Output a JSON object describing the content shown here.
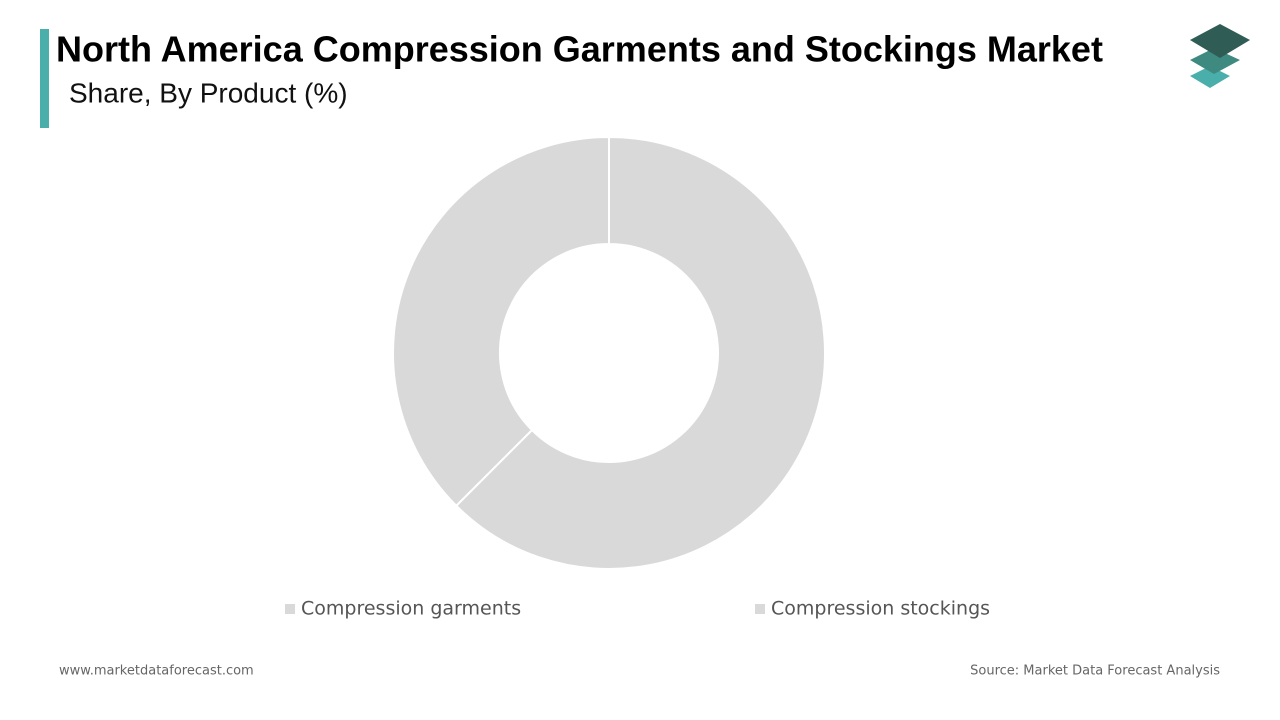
{
  "chart_data": {
    "type": "pie",
    "title": "North America Compression Garments and Stockings Market",
    "subtitle": "Share, By Product (%)",
    "categories": [
      "Compression garments",
      "Compression stockings"
    ],
    "values": [
      62.5,
      37.5
    ],
    "colors": [
      "#d9d9d9",
      "#d9d9d9"
    ],
    "donut": true
  },
  "footer": {
    "website": "www.marketdataforecast.com",
    "source": "Source: Market Data Forecast Analysis"
  }
}
